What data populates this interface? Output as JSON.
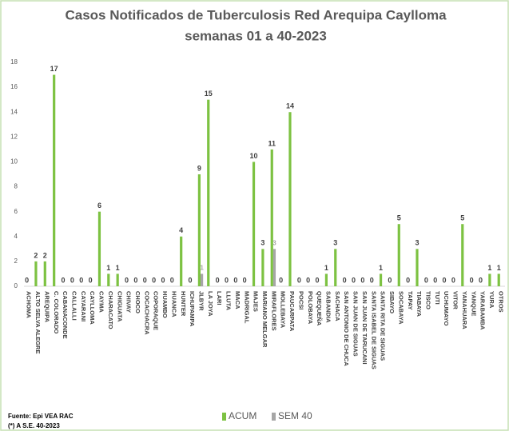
{
  "chart_data": {
    "type": "bar",
    "title": "Casos Notificados de Tuberculosis Red Arequipa Caylloma",
    "subtitle": "semanas 01 a 40-2023",
    "categories": [
      "ACHOMA",
      "ALTO SELVA ALEGRE",
      "AREQUIPA",
      "C. COLORADO",
      "CABANACONDE",
      "CALLALLI",
      "CAYARANI",
      "CAYLLOMA",
      "CAYMA",
      "CHARACATO",
      "CHIGUATA",
      "CHIVAY",
      "CHOCO",
      "COCACHACRA",
      "COPORAQUE",
      "HUAMBO",
      "HUANCA",
      "HUNTER",
      "ICHUPAMPA",
      "JLBYR",
      "LA JOYA",
      "LARI",
      "LLUTA",
      "MACA",
      "MADRIGAL",
      "MAJES",
      "MARIANO MELGAR",
      "MIRAFLORES",
      "MOLLEBAYA",
      "PAUCARPATA",
      "POCSI",
      "POLOBAYA",
      "QUEQUEÑA",
      "SABANDIA",
      "SACHACA",
      "SAN ANTONIO DE CHUCA",
      "SAN JUAN DE SIGUAS",
      "SAN JUAN DE TARUCANI",
      "SANTA ISABEL DE SIGUAS",
      "SANTA RITA DE SIGUAS",
      "SIBAYO",
      "SOCABAYA",
      "TAPAY",
      "TIABAYA",
      "TISCO",
      "TUTI",
      "UCHUMAYO",
      "VITOR",
      "YANAHUARA",
      "YANQUE",
      "YARABAMBA",
      "YURA",
      "OTROS"
    ],
    "series": [
      {
        "name": "ACUM",
        "color": "#7dc242",
        "show_zero_labels": true,
        "values": [
          0,
          2,
          2,
          17,
          0,
          0,
          0,
          0,
          6,
          1,
          1,
          0,
          0,
          0,
          0,
          0,
          0,
          4,
          0,
          9,
          15,
          0,
          0,
          0,
          0,
          10,
          3,
          11,
          0,
          14,
          0,
          0,
          0,
          1,
          3,
          0,
          0,
          0,
          0,
          1,
          0,
          5,
          0,
          3,
          0,
          0,
          0,
          0,
          5,
          0,
          0,
          1,
          1
        ]
      },
      {
        "name": "SEM 40",
        "color": "#a6a6a6",
        "show_zero_labels": false,
        "values": [
          0,
          0,
          0,
          0,
          0,
          0,
          0,
          0,
          0,
          0,
          0,
          0,
          0,
          0,
          0,
          0,
          0,
          0,
          0,
          1,
          0,
          0,
          0,
          0,
          0,
          0,
          0,
          3,
          0,
          0,
          0,
          0,
          0,
          0,
          0,
          0,
          0,
          0,
          0,
          0,
          0,
          0,
          0,
          0,
          0,
          0,
          0,
          0,
          0,
          0,
          0,
          0,
          0
        ]
      }
    ],
    "ylim": [
      0,
      18
    ],
    "yticks": [
      0,
      2,
      4,
      6,
      8,
      10,
      12,
      14,
      16,
      18
    ],
    "grid": false,
    "source": "Fuente: Epi VEA RAC",
    "note": "(*) A S.E. 40-2023"
  }
}
